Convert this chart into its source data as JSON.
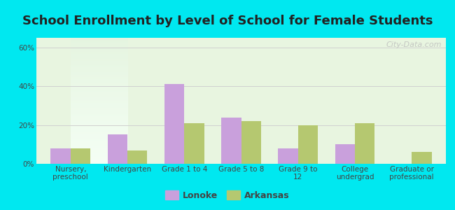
{
  "title": "School Enrollment by Level of School for Female Students",
  "categories": [
    "Nursery,\npreschool",
    "Kindergarten",
    "Grade 1 to 4",
    "Grade 5 to 8",
    "Grade 9 to\n12",
    "College\nundergrad",
    "Graduate or\nprofessional"
  ],
  "lonoke": [
    8,
    15,
    41,
    24,
    8,
    10,
    0
  ],
  "arkansas": [
    8,
    7,
    21,
    22,
    20,
    21,
    6
  ],
  "lonoke_color": "#c9a0dc",
  "arkansas_color": "#b5c870",
  "bar_width": 0.35,
  "ylim": [
    0,
    65
  ],
  "yticks": [
    0,
    20,
    40,
    60
  ],
  "ytick_labels": [
    "0%",
    "20%",
    "40%",
    "60%"
  ],
  "bg_outer": "#00e8f0",
  "grid_color": "#d0d0d0",
  "title_fontsize": 13,
  "tick_fontsize": 7.5,
  "legend_fontsize": 9,
  "watermark": "City-Data.com"
}
